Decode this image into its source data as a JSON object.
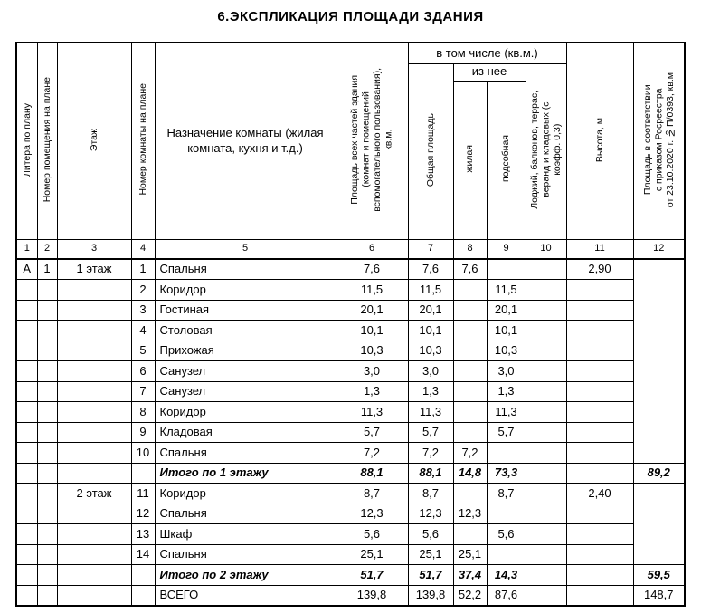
{
  "title": "6.ЭКСПЛИКАЦИЯ ПЛОЩАДИ ЗДАНИЯ",
  "table": {
    "headers": {
      "litera": "Литера по плану",
      "room_no": "Номер помещения на плане",
      "floor": "Этаж",
      "room_num": "Номер комнаты на плане",
      "purpose": "Назначение комнаты (жилая\nкомната, кухня и т.д.)",
      "area_total": "Площадь всех частей здания\n(комнат и помещений\nвспомогательного пользования),\nкв.м.",
      "group_incl": "в том числе (кв.м.)",
      "area_common": "Общая площадь",
      "group_iznee": "из нее",
      "area_living": "жилая",
      "area_aux": "подсобная",
      "area_balcony": "Лоджий, балконов, террас,\nверанд и кладовых (с\nкоэфф. 0,3)",
      "height": "Высота, м",
      "area_rosreestr": "Площадь в соответствии\nс приказом Росреестра\nот 23.10.2020 г. №П/0393, кв.м"
    },
    "column_numbers": [
      "1",
      "2",
      "3",
      "4",
      "5",
      "6",
      "7",
      "8",
      "9",
      "10",
      "11",
      "12"
    ],
    "rows": [
      {
        "cells": [
          "А",
          "1",
          "1 этаж",
          "1",
          "Спальня",
          "7,6",
          "7,6",
          "7,6",
          "",
          "",
          "2,90"
        ],
        "ros": {
          "span": 10,
          "text": ""
        }
      },
      {
        "cells": [
          "",
          "",
          "",
          "2",
          "Коридор",
          "11,5",
          "11,5",
          "",
          "11,5",
          "",
          ""
        ]
      },
      {
        "cells": [
          "",
          "",
          "",
          "3",
          "Гостиная",
          "20,1",
          "20,1",
          "",
          "20,1",
          "",
          ""
        ]
      },
      {
        "cells": [
          "",
          "",
          "",
          "4",
          "Столовая",
          "10,1",
          "10,1",
          "",
          "10,1",
          "",
          ""
        ]
      },
      {
        "cells": [
          "",
          "",
          "",
          "5",
          "Прихожая",
          "10,3",
          "10,3",
          "",
          "10,3",
          "",
          ""
        ]
      },
      {
        "cells": [
          "",
          "",
          "",
          "6",
          "Санузел",
          "3,0",
          "3,0",
          "",
          "3,0",
          "",
          ""
        ]
      },
      {
        "cells": [
          "",
          "",
          "",
          "7",
          "Санузел",
          "1,3",
          "1,3",
          "",
          "1,3",
          "",
          ""
        ]
      },
      {
        "cells": [
          "",
          "",
          "",
          "8",
          "Коридор",
          "11,3",
          "11,3",
          "",
          "11,3",
          "",
          ""
        ]
      },
      {
        "cells": [
          "",
          "",
          "",
          "9",
          "Кладовая",
          "5,7",
          "5,7",
          "",
          "5,7",
          "",
          ""
        ]
      },
      {
        "cells": [
          "",
          "",
          "",
          "10",
          "Спальня",
          "7,2",
          "7,2",
          "7,2",
          "",
          "",
          ""
        ]
      },
      {
        "style": "subtotal",
        "cells": [
          "",
          "",
          "",
          "",
          "Итого по 1 этажу",
          "88,1",
          "88,1",
          "14,8",
          "73,3",
          "",
          ""
        ],
        "ros": {
          "span": 1,
          "text": "89,2"
        }
      },
      {
        "cells": [
          "",
          "",
          "2 этаж",
          "11",
          "Коридор",
          "8,7",
          "8,7",
          "",
          "8,7",
          "",
          "2,40"
        ],
        "ros": {
          "span": 4,
          "text": ""
        }
      },
      {
        "cells": [
          "",
          "",
          "",
          "12",
          "Спальня",
          "12,3",
          "12,3",
          "12,3",
          "",
          "",
          ""
        ]
      },
      {
        "cells": [
          "",
          "",
          "",
          "13",
          "Шкаф",
          "5,6",
          "5,6",
          "",
          "5,6",
          "",
          ""
        ]
      },
      {
        "cells": [
          "",
          "",
          "",
          "14",
          "Спальня",
          "25,1",
          "25,1",
          "25,1",
          "",
          "",
          ""
        ]
      },
      {
        "style": "subtotal",
        "cells": [
          "",
          "",
          "",
          "",
          "Итого по 2 этажу",
          "51,7",
          "51,7",
          "37,4",
          "14,3",
          "",
          ""
        ],
        "ros": {
          "span": 1,
          "text": "59,5"
        }
      },
      {
        "style": "total",
        "cells": [
          "",
          "",
          "",
          "",
          "ВСЕГО",
          "139,8",
          "139,8",
          "52,2",
          "87,6",
          "",
          ""
        ],
        "ros": {
          "span": 1,
          "text": "148,7"
        }
      }
    ]
  }
}
